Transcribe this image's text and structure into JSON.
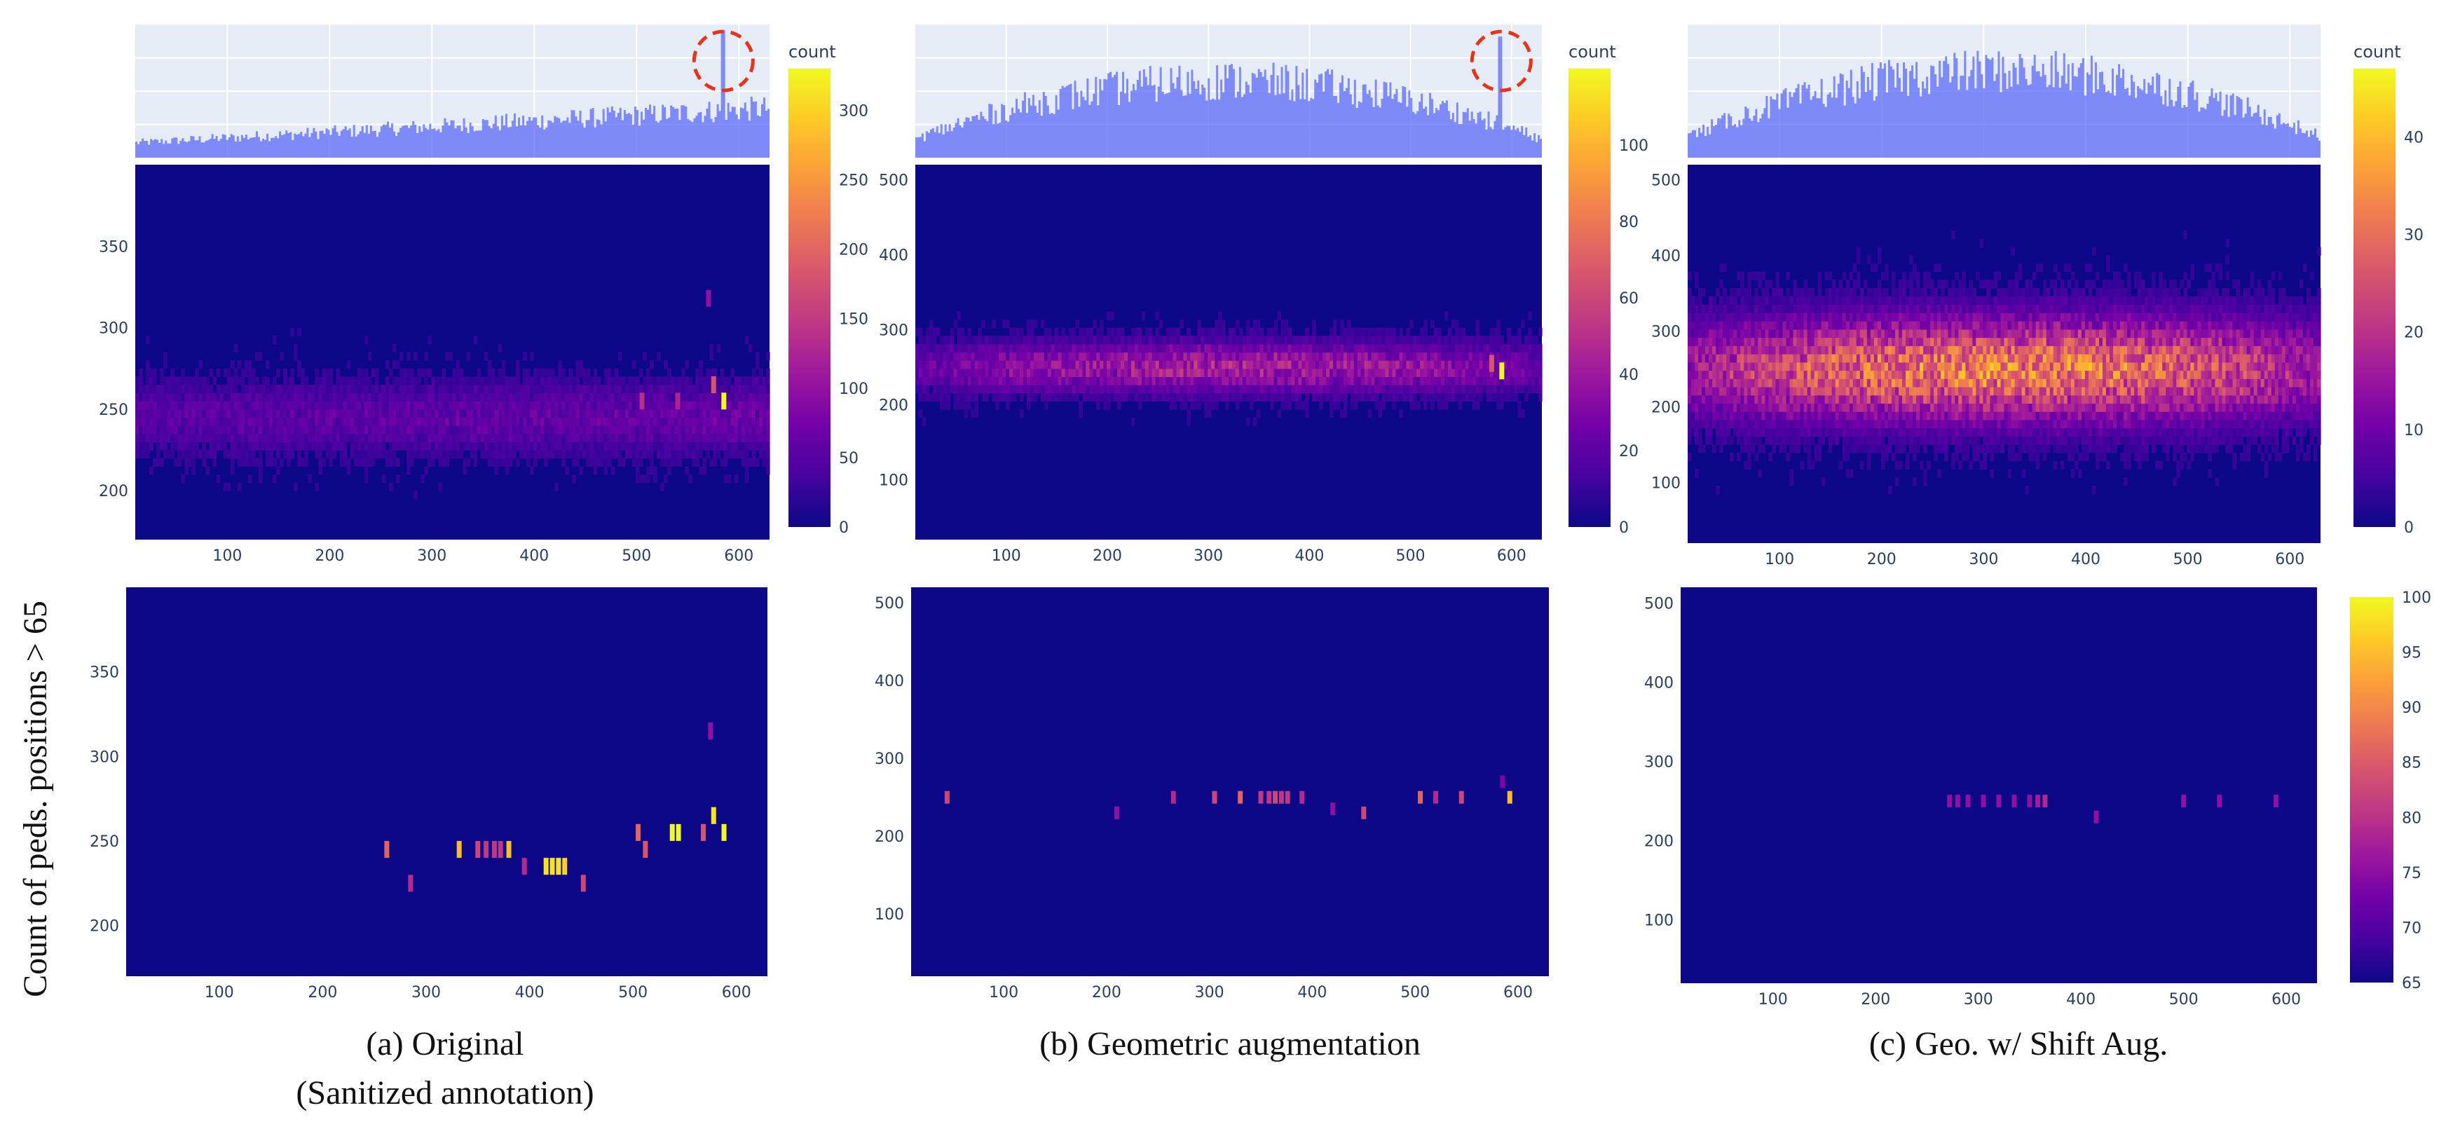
{
  "figure": {
    "y_axis_label": "Count of peds. positions > 65",
    "colorscale": [
      "#0d0887",
      "#46039f",
      "#7201a8",
      "#9c179e",
      "#bd3786",
      "#d8576b",
      "#ed7953",
      "#fb9f3a",
      "#fdca26",
      "#f0f921"
    ],
    "background": "#ffffff",
    "plot_bg": "#e5ecf6",
    "marginal_color": "#636efa"
  },
  "chart_data": [
    {
      "id": "a",
      "type": "heatmap",
      "caption_line1": "(a)  Original",
      "caption_line2": "(Sanitized annotation)",
      "xlim": [
        10,
        630
      ],
      "x_ticks": [
        "100",
        "200",
        "300",
        "400",
        "500",
        "600"
      ],
      "x_tick_values": [
        100,
        200,
        300,
        400,
        500,
        600
      ],
      "top": {
        "ylim": [
          170,
          400
        ],
        "y_ticks": [
          "200",
          "250",
          "300",
          "350"
        ],
        "y_tick_values": [
          200,
          250,
          300,
          350
        ],
        "colorbar_title": "count",
        "colorbar_range": [
          0,
          330
        ],
        "colorbar_ticks": [
          "0",
          "50",
          "100",
          "150",
          "200",
          "250",
          "300"
        ],
        "colorbar_tick_values": [
          0,
          50,
          100,
          150,
          200,
          250,
          300
        ],
        "band_center": 245,
        "band_half_width": 20,
        "band_level": 0.18,
        "band_trend": 0.25,
        "hist_base": 0.12,
        "hist_slope": 0.28,
        "hist_shape": "rising",
        "hist_peak_x": 585,
        "hist_peak_height": 1.0,
        "circle_x": 585,
        "hot_cells": [
          {
            "x": 585,
            "y": 255,
            "v": 1.0
          },
          {
            "x": 575,
            "y": 265,
            "v": 0.55
          },
          {
            "x": 505,
            "y": 255,
            "v": 0.42
          },
          {
            "x": 540,
            "y": 255,
            "v": 0.38
          },
          {
            "x": 570,
            "y": 318,
            "v": 0.3
          }
        ]
      },
      "bottom": {
        "ylim": [
          170,
          400
        ],
        "y_ticks": [
          "200",
          "250",
          "300",
          "350"
        ],
        "y_tick_values": [
          200,
          250,
          300,
          350
        ],
        "cells": [
          {
            "x": 262,
            "y": 245,
            "v": 0.6
          },
          {
            "x": 285,
            "y": 225,
            "v": 0.4
          },
          {
            "x": 332,
            "y": 245,
            "v": 0.85
          },
          {
            "x": 350,
            "y": 245,
            "v": 0.5
          },
          {
            "x": 358,
            "y": 245,
            "v": 0.45
          },
          {
            "x": 366,
            "y": 245,
            "v": 0.45
          },
          {
            "x": 372,
            "y": 245,
            "v": 0.45
          },
          {
            "x": 380,
            "y": 245,
            "v": 0.85
          },
          {
            "x": 395,
            "y": 235,
            "v": 0.4
          },
          {
            "x": 416,
            "y": 235,
            "v": 0.95
          },
          {
            "x": 422,
            "y": 235,
            "v": 0.95
          },
          {
            "x": 428,
            "y": 235,
            "v": 0.95
          },
          {
            "x": 434,
            "y": 235,
            "v": 0.9
          },
          {
            "x": 452,
            "y": 225,
            "v": 0.5
          },
          {
            "x": 505,
            "y": 255,
            "v": 0.6
          },
          {
            "x": 512,
            "y": 245,
            "v": 0.55
          },
          {
            "x": 538,
            "y": 255,
            "v": 1.0
          },
          {
            "x": 544,
            "y": 255,
            "v": 1.0
          },
          {
            "x": 568,
            "y": 255,
            "v": 0.55
          },
          {
            "x": 575,
            "y": 315,
            "v": 0.3
          },
          {
            "x": 578,
            "y": 265,
            "v": 0.95
          },
          {
            "x": 588,
            "y": 255,
            "v": 1.0
          }
        ]
      }
    },
    {
      "id": "b",
      "type": "heatmap",
      "caption_line1": "(b) Geometric augmentation",
      "xlim": [
        10,
        630
      ],
      "x_ticks": [
        "100",
        "200",
        "300",
        "400",
        "500",
        "600"
      ],
      "x_tick_values": [
        100,
        200,
        300,
        400,
        500,
        600
      ],
      "top": {
        "ylim": [
          20,
          520
        ],
        "y_ticks": [
          "100",
          "200",
          "300",
          "400",
          "500"
        ],
        "y_tick_values": [
          100,
          200,
          300,
          400,
          500
        ],
        "colorbar_title": "count",
        "colorbar_range": [
          0,
          120
        ],
        "colorbar_ticks": [
          "0",
          "20",
          "40",
          "60",
          "80",
          "100"
        ],
        "colorbar_tick_values": [
          0,
          20,
          40,
          60,
          80,
          100
        ],
        "band_center": 250,
        "band_half_width": 30,
        "band_level": 0.36,
        "band_trend": 0.0,
        "hist_base": 0.62,
        "hist_slope": 0.0,
        "hist_shape": "dome",
        "hist_peak_x": 590,
        "hist_peak_height": 0.95,
        "circle_x": 590,
        "hot_cells": [
          {
            "x": 590,
            "y": 245,
            "v": 1.0
          },
          {
            "x": 580,
            "y": 255,
            "v": 0.55
          }
        ]
      },
      "bottom": {
        "ylim": [
          20,
          520
        ],
        "y_ticks": [
          "100",
          "200",
          "300",
          "400",
          "500"
        ],
        "y_tick_values": [
          100,
          200,
          300,
          400,
          500
        ],
        "cells": [
          {
            "x": 45,
            "y": 250,
            "v": 0.5
          },
          {
            "x": 210,
            "y": 230,
            "v": 0.3
          },
          {
            "x": 265,
            "y": 250,
            "v": 0.4
          },
          {
            "x": 305,
            "y": 250,
            "v": 0.5
          },
          {
            "x": 330,
            "y": 250,
            "v": 0.6
          },
          {
            "x": 350,
            "y": 250,
            "v": 0.45
          },
          {
            "x": 358,
            "y": 250,
            "v": 0.45
          },
          {
            "x": 364,
            "y": 250,
            "v": 0.5
          },
          {
            "x": 370,
            "y": 250,
            "v": 0.45
          },
          {
            "x": 376,
            "y": 250,
            "v": 0.45
          },
          {
            "x": 390,
            "y": 250,
            "v": 0.4
          },
          {
            "x": 420,
            "y": 235,
            "v": 0.3
          },
          {
            "x": 450,
            "y": 230,
            "v": 0.5
          },
          {
            "x": 505,
            "y": 250,
            "v": 0.6
          },
          {
            "x": 520,
            "y": 250,
            "v": 0.4
          },
          {
            "x": 545,
            "y": 250,
            "v": 0.5
          },
          {
            "x": 585,
            "y": 270,
            "v": 0.25
          },
          {
            "x": 592,
            "y": 250,
            "v": 0.85
          }
        ]
      }
    },
    {
      "id": "c",
      "type": "heatmap",
      "caption_line1": "(c) Geo. w/ Shift Aug.",
      "xlim": [
        10,
        630
      ],
      "x_ticks": [
        "100",
        "200",
        "300",
        "400",
        "500",
        "600"
      ],
      "x_tick_values": [
        100,
        200,
        300,
        400,
        500,
        600
      ],
      "top": {
        "ylim": [
          20,
          520
        ],
        "y_ticks": [
          "100",
          "200",
          "300",
          "400",
          "500"
        ],
        "y_tick_values": [
          100,
          200,
          300,
          400,
          500
        ],
        "colorbar_title": "count",
        "colorbar_range": [
          0,
          47
        ],
        "colorbar_ticks": [
          "0",
          "10",
          "20",
          "30",
          "40"
        ],
        "colorbar_tick_values": [
          0,
          10,
          20,
          30,
          40
        ],
        "band_center": 250,
        "band_half_width": 60,
        "band_level": 0.7,
        "band_trend": 0.0,
        "hist_base": 0.7,
        "hist_slope": 0.0,
        "hist_shape": "dome",
        "hist_peak_x": -1,
        "hist_peak_height": 0,
        "circle_x": -1,
        "hot_cells": []
      },
      "bottom": {
        "ylim": [
          20,
          520
        ],
        "y_ticks": [
          "100",
          "200",
          "300",
          "400",
          "500"
        ],
        "y_tick_values": [
          100,
          200,
          300,
          400,
          500
        ],
        "colorbar_range": [
          65,
          100
        ],
        "colorbar_ticks": [
          "65",
          "70",
          "75",
          "80",
          "85",
          "90",
          "95",
          "100"
        ],
        "colorbar_tick_values": [
          65,
          70,
          75,
          80,
          85,
          90,
          95,
          100
        ],
        "cells": [
          {
            "x": 272,
            "y": 250,
            "v": 0.3
          },
          {
            "x": 280,
            "y": 250,
            "v": 0.3
          },
          {
            "x": 290,
            "y": 250,
            "v": 0.3
          },
          {
            "x": 305,
            "y": 250,
            "v": 0.3
          },
          {
            "x": 320,
            "y": 250,
            "v": 0.3
          },
          {
            "x": 335,
            "y": 250,
            "v": 0.3
          },
          {
            "x": 350,
            "y": 250,
            "v": 0.3
          },
          {
            "x": 358,
            "y": 250,
            "v": 0.35
          },
          {
            "x": 365,
            "y": 250,
            "v": 0.4
          },
          {
            "x": 415,
            "y": 230,
            "v": 0.3
          },
          {
            "x": 500,
            "y": 250,
            "v": 0.3
          },
          {
            "x": 535,
            "y": 250,
            "v": 0.3
          },
          {
            "x": 590,
            "y": 250,
            "v": 0.3
          }
        ]
      }
    }
  ]
}
